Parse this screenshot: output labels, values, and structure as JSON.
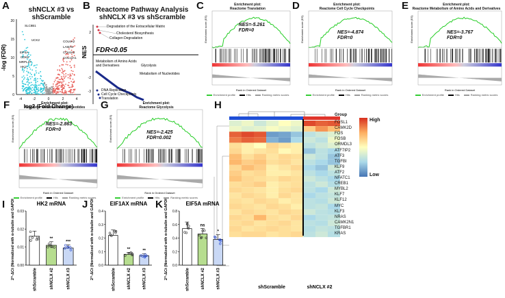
{
  "panel_letters": [
    "A",
    "B",
    "C",
    "D",
    "E",
    "F",
    "G",
    "H",
    "I",
    "J",
    "K"
  ],
  "A": {
    "title": "shNCLX #3 vs shScramble",
    "xlabel": "log2 (Fold Change)",
    "ylabel": "-log (FDR)",
    "xticks": [
      "-4",
      "-2",
      "0",
      "2",
      "4"
    ],
    "yticks": [
      "0",
      "5",
      "10",
      "15",
      "20"
    ],
    "genes_up": [
      "COL6A2",
      "LAMA5",
      "COL6A3",
      "COL12A1"
    ],
    "genes_down": [
      "SLC8B1",
      "UCK2",
      "EIF5A",
      "CDK6",
      "MRPL37",
      "HK2"
    ]
  },
  "B": {
    "title": "Reactome Pathway Analysis",
    "subtitle": "shNCLX #3 vs shScramble",
    "ylabel": "NES",
    "yticks": [
      "2",
      "-2",
      "-3"
    ],
    "fdr_label": "FDR<0.05",
    "up_terms": [
      "Degradation of the Extracellular Matrix",
      "Cholesterol Biosynthesis",
      "Collagen Degradation"
    ],
    "down_terms": [
      "Metabolism of Amino Acids",
      "and Derivatives",
      "Glycolysis",
      "Metabolism of Nucleotides",
      "DNA Replication",
      "Cell Cycle Checkpoints",
      "Translation"
    ]
  },
  "gsea": {
    "C": {
      "title1": "Enrichment plot:",
      "title2": "Reactome Translation",
      "nes": "NES=-5.261",
      "fdr": "FDR=0"
    },
    "D": {
      "title1": "Enrichment plot:",
      "title2": "Reactome Cell Cycle Checkpoints",
      "nes": "NES=-4.874",
      "fdr": "FDR=0"
    },
    "E": {
      "title1": "Enrichment plot:",
      "title2": "Reactome Metabolism of Amino Acids and Derivatives",
      "nes": "NES=-3.767",
      "fdr": "FDR=0"
    },
    "F": {
      "title1": "Enrichment plot:",
      "title2": "Reactome Metabolism of Nucleotides",
      "nes": "NES=-2.863",
      "fdr": "FDR=0"
    },
    "G": {
      "title1": "Enrichment plot:",
      "title2": "Reactome Glycolysis",
      "nes": "NES=-2.425",
      "fdr": "FDR=0.002"
    },
    "legend": [
      "Enrichment profile",
      "Hits",
      "Ranking metric scores"
    ],
    "xlabel": "Rank in Ordered Dataset",
    "ylabel_top": "Enrichment score (ES)"
  },
  "H": {
    "group_label": "Group",
    "legend_high": "High",
    "legend_low": "Low",
    "group_labels": [
      "shScramble",
      "shNCLX #2"
    ],
    "genes": [
      "FOSL1",
      "CAMK2D",
      "FOS",
      "FOSB",
      "ORMDL3",
      "ATF7IP2",
      "ATF3",
      "TGFBI",
      "KLF9",
      "ATF2",
      "NFATC1",
      "CREB1",
      "MYBL2",
      "KLF7",
      "KLF12",
      "MYC",
      "KLF3",
      "NRAS",
      "CAMK2N1",
      "TGFBR1",
      "KRAS"
    ],
    "matrix": [
      [
        0.4,
        0.45,
        0.35,
        0.42,
        0.5,
        0.45,
        0.95,
        0.9,
        0.92
      ],
      [
        0.45,
        0.4,
        0.42,
        0.48,
        0.44,
        0.4,
        0.65,
        0.8,
        0.7
      ],
      [
        0.9,
        0.95,
        0.92,
        0.1,
        0.12,
        0.2,
        0.3,
        0.35,
        0.4
      ],
      [
        0.85,
        0.9,
        0.88,
        0.15,
        0.1,
        0.25,
        0.35,
        0.3,
        0.45
      ],
      [
        0.6,
        0.55,
        0.5,
        0.62,
        0.58,
        0.55,
        0.3,
        0.35,
        0.4
      ],
      [
        0.62,
        0.55,
        0.58,
        0.6,
        0.52,
        0.55,
        0.2,
        0.3,
        0.25
      ],
      [
        0.7,
        0.6,
        0.65,
        0.58,
        0.62,
        0.6,
        0.35,
        0.3,
        0.2
      ],
      [
        0.72,
        0.65,
        0.68,
        0.6,
        0.62,
        0.58,
        0.3,
        0.25,
        0.2
      ],
      [
        0.62,
        0.7,
        0.65,
        0.55,
        0.58,
        0.62,
        0.25,
        0.2,
        0.35
      ],
      [
        0.65,
        0.6,
        0.62,
        0.55,
        0.55,
        0.58,
        0.3,
        0.25,
        0.3
      ],
      [
        0.68,
        0.62,
        0.6,
        0.58,
        0.62,
        0.6,
        0.35,
        0.3,
        0.25
      ],
      [
        0.6,
        0.62,
        0.65,
        0.55,
        0.58,
        0.6,
        0.3,
        0.35,
        0.28
      ],
      [
        0.62,
        0.6,
        0.58,
        0.55,
        0.6,
        0.62,
        0.3,
        0.25,
        0.35
      ],
      [
        0.58,
        0.62,
        0.6,
        0.55,
        0.62,
        0.58,
        0.25,
        0.3,
        0.32
      ],
      [
        0.6,
        0.58,
        0.62,
        0.6,
        0.55,
        0.58,
        0.3,
        0.28,
        0.35
      ],
      [
        0.62,
        0.6,
        0.58,
        0.62,
        0.6,
        0.55,
        0.3,
        0.32,
        0.25
      ],
      [
        0.58,
        0.62,
        0.6,
        0.58,
        0.62,
        0.6,
        0.35,
        0.3,
        0.28
      ],
      [
        0.62,
        0.6,
        0.72,
        0.6,
        0.58,
        0.62,
        0.25,
        0.3,
        0.32
      ],
      [
        0.6,
        0.62,
        0.58,
        0.6,
        0.62,
        0.58,
        0.3,
        0.28,
        0.35
      ],
      [
        0.62,
        0.58,
        0.6,
        0.62,
        0.6,
        0.58,
        0.28,
        0.32,
        0.3
      ],
      [
        0.6,
        0.62,
        0.62,
        0.58,
        0.6,
        0.62,
        0.3,
        0.35,
        0.28
      ]
    ]
  },
  "bars": {
    "I": {
      "title": "HK2 mRNA",
      "ylabel": "2^-ΔCt (Normalized with α-tubulin and GAPDH)",
      "yticks": [
        "0.00",
        "0.01",
        "0.02",
        "0.03"
      ],
      "ymax": 0.03,
      "categories": [
        "shScramble",
        "shNCLX #2",
        "shNCLX #3"
      ],
      "values": [
        0.016,
        0.011,
        0.0095
      ],
      "sig": [
        "",
        "**",
        "***"
      ]
    },
    "J": {
      "title": "EIF1AX mRNA",
      "ylabel": "2^-ΔCt (Normalized with α-tubulin and GAPDH)",
      "yticks": [
        "0.0",
        "0.1",
        "0.2",
        "0.3",
        "0.4"
      ],
      "ymax": 0.4,
      "categories": [
        "shScramble",
        "shNCLX #2",
        "shNCLX #3"
      ],
      "values": [
        0.22,
        0.08,
        0.07
      ],
      "sig": [
        "",
        "**",
        "**"
      ]
    },
    "K": {
      "title": "EIF5A mRNA",
      "ylabel": "2^-ΔCt (Normalized with α-tubulin and GAPDH)",
      "yticks": [
        "0.0",
        "0.2",
        "0.4",
        "0.6",
        "0.8"
      ],
      "ymax": 0.8,
      "categories": [
        "shScramble",
        "shNCLX #2",
        "shNCLX #3"
      ],
      "values": [
        0.54,
        0.46,
        0.38
      ],
      "sig": [
        "",
        "ns",
        "*"
      ]
    }
  }
}
